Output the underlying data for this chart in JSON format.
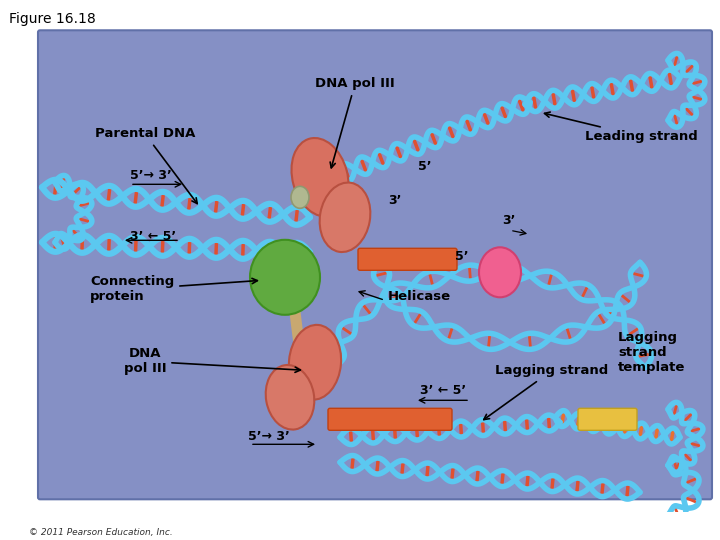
{
  "figure_label": "Figure 16.18",
  "background_color": "#ffffff",
  "diagram_bg_top": "#8090c8",
  "diagram_bg_bottom": "#7080b8",
  "copyright": "© 2011 Pearson Education, Inc.",
  "labels": {
    "dna_pol_iii_top": "DNA pol III",
    "parental_dna": "Parental DNA",
    "leading_strand": "Leading strand",
    "connecting_protein": "Connecting\nprotein",
    "helicase": "Helicase",
    "dna_pol_iii_bottom": "DNA\npol III",
    "lagging_strand": "Lagging strand",
    "lagging_strand_template": "Lagging\nstrand\ntemplate",
    "arrow_5_3_top": "5’→ 3’",
    "arrow_3_5_mid": "3’ ← 5’",
    "label_5prime_lead": "5’",
    "label_3prime_lead": "3’",
    "label_5prime_loop": "5’",
    "label_3prime_loop": "3’",
    "arrow_3_5_lag": "3’ ← 5’",
    "arrow_5_3_lag": "5’→ 3’"
  },
  "dna_color": "#5bc8f0",
  "dna_dark": "#3a9ec8",
  "rung_color_red": "#e05030",
  "rung_color_orange": "#e87030",
  "pol3_color": "#d87060",
  "pol3_edge": "#b85040",
  "green_color": "#60aa40",
  "green_edge": "#409020",
  "tan_color": "#c8a870",
  "pink_color": "#f06090",
  "pink_edge": "#d04070",
  "yellow_color": "#e8c040",
  "font_size_label": 9.5,
  "font_size_small": 9.0
}
